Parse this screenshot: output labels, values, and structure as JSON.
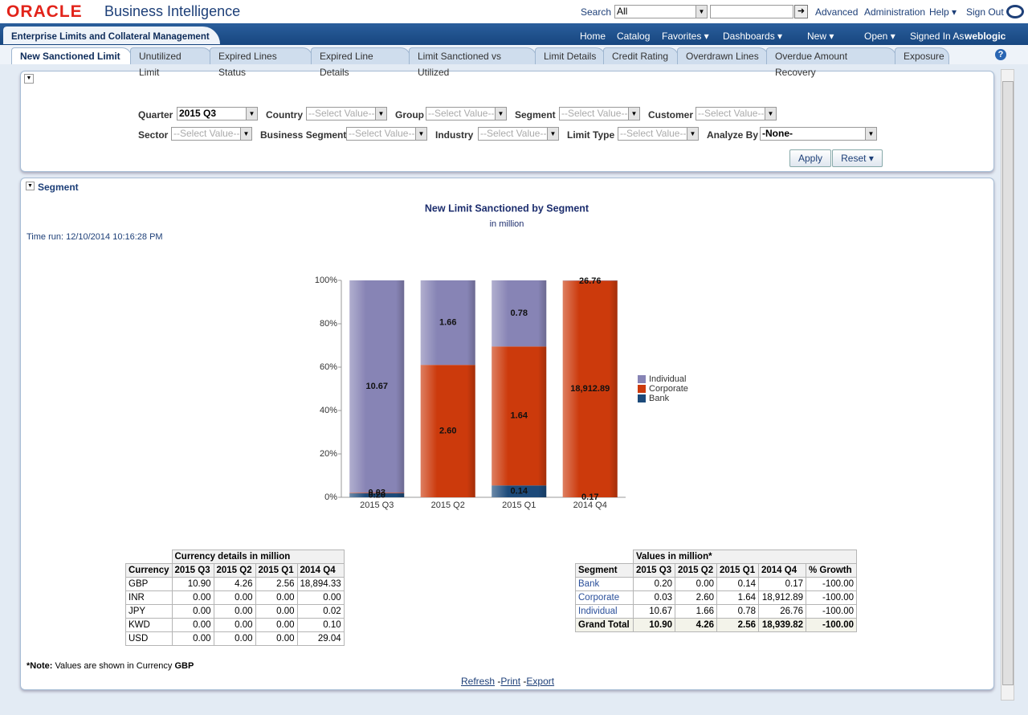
{
  "header": {
    "logo": "ORACLE",
    "product": "Business Intelligence",
    "search_label": "Search",
    "search_scope": "All",
    "links": [
      "Advanced",
      "Administration",
      "Help",
      "Sign Out"
    ]
  },
  "nav": {
    "dashboard": "Enterprise Limits and Collateral Management",
    "links": [
      "Home",
      "Catalog",
      "Favorites",
      "Dashboards",
      "New",
      "Open"
    ],
    "signed_in_label": "Signed In As",
    "user": "weblogic"
  },
  "tabs": [
    "New Sanctioned Limit",
    "Unutilized Limit",
    "Expired Lines Status",
    "Expired Line Details",
    "Limit Sanctioned vs Utilized",
    "Limit Details",
    "Credit Rating",
    "Overdrawn Lines",
    "Overdue Amount Recovery",
    "Exposure"
  ],
  "filters": [
    {
      "label": "Quarter",
      "value": "2015 Q3"
    },
    {
      "label": "Country",
      "value": "--Select Value--"
    },
    {
      "label": "Group",
      "value": "--Select Value--"
    },
    {
      "label": "Segment",
      "value": "--Select Value--"
    },
    {
      "label": "Customer",
      "value": "--Select Value--"
    },
    {
      "label": "Sector",
      "value": "--Select Value--"
    },
    {
      "label": "Business Segment",
      "value": "--Select Value--"
    },
    {
      "label": "Industry",
      "value": "--Select Value--"
    },
    {
      "label": "Limit Type",
      "value": "--Select Value--"
    },
    {
      "label": "Analyze By",
      "value": "-None-"
    }
  ],
  "buttons": [
    "Apply",
    "Reset"
  ],
  "section": {
    "title": "Segment",
    "time_run": "Time run: 12/10/2014 10:16:28 PM"
  },
  "chart_data": {
    "type": "stacked_percent_bar",
    "title": "New Limit Sanctioned by Segment",
    "subtitle": "in million",
    "categories": [
      "2015 Q3",
      "2015 Q2",
      "2015 Q1",
      "2014 Q4"
    ],
    "series": [
      {
        "name": "Individual",
        "color": "#8784b5",
        "values": [
          10.67,
          1.66,
          0.78,
          26.76
        ],
        "value_labels": [
          "10.67",
          "1.66",
          "0.78",
          "26.76"
        ]
      },
      {
        "name": "Corporate",
        "color": "#cc3a0c",
        "values": [
          0.03,
          2.6,
          1.64,
          18912.89
        ],
        "value_labels": [
          "0.03",
          "2.60",
          "1.64",
          "18,912.89"
        ]
      },
      {
        "name": "Bank",
        "color": "#1c4a7a",
        "values": [
          0.2,
          0.0,
          0.14,
          0.17
        ],
        "value_labels": [
          "0.20",
          null,
          "0.14",
          "0.17"
        ]
      }
    ],
    "ylim": [
      0,
      100
    ],
    "yticks": [
      {
        "value": 0,
        "label": "0%"
      },
      {
        "value": 20,
        "label": "20%"
      },
      {
        "value": 40,
        "label": "40%"
      },
      {
        "value": 60,
        "label": "60%"
      },
      {
        "value": 80,
        "label": "80%"
      },
      {
        "value": 100,
        "label": "100%"
      }
    ],
    "legend": "right"
  },
  "currency_table": {
    "caption": "Currency details in million",
    "columns": [
      "Currency",
      "2015 Q3",
      "2015 Q2",
      "2015 Q1",
      "2014 Q4"
    ],
    "rows": [
      [
        "GBP",
        "10.90",
        "4.26",
        "2.56",
        "18,894.33"
      ],
      [
        "INR",
        "0.00",
        "0.00",
        "0.00",
        "0.00"
      ],
      [
        "JPY",
        "0.00",
        "0.00",
        "0.00",
        "0.02"
      ],
      [
        "KWD",
        "0.00",
        "0.00",
        "0.00",
        "0.10"
      ],
      [
        "USD",
        "0.00",
        "0.00",
        "0.00",
        "29.04"
      ]
    ]
  },
  "segment_table": {
    "caption": "Values in million*",
    "columns": [
      "Segment",
      "2015 Q3",
      "2015 Q2",
      "2015 Q1",
      "2014 Q4",
      "% Growth"
    ],
    "rows": [
      [
        "Bank",
        "0.20",
        "0.00",
        "0.14",
        "0.17",
        "-100.00"
      ],
      [
        "Corporate",
        "0.03",
        "2.60",
        "1.64",
        "18,912.89",
        "-100.00"
      ],
      [
        "Individual",
        "10.67",
        "1.66",
        "0.78",
        "26.76",
        "-100.00"
      ]
    ],
    "total": [
      "Grand Total",
      "10.90",
      "4.26",
      "2.56",
      "18,939.82",
      "-100.00"
    ]
  },
  "note": {
    "label": "*Note:",
    "text": "Values are shown in Currency",
    "currency": "GBP"
  },
  "footer_links": [
    "Refresh",
    "Print",
    "Export"
  ]
}
